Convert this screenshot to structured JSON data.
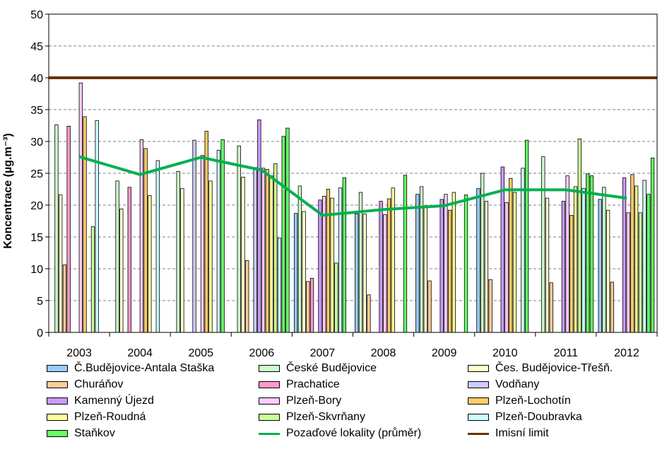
{
  "chart_data": {
    "type": "bar",
    "ylabel": "Koncentrace (µg.m⁻³)",
    "ylim": [
      0,
      50
    ],
    "yticks": [
      0,
      5,
      10,
      15,
      20,
      25,
      30,
      35,
      40,
      45,
      50
    ],
    "grid": true,
    "legend_position": "bottom",
    "categories": [
      "2003",
      "2004",
      "2005",
      "2006",
      "2007",
      "2008",
      "2009",
      "2010",
      "2011",
      "2012"
    ],
    "series": [
      {
        "name": "Č.Budějovice-Antala Staška",
        "color": "#99ccff",
        "values": [
          null,
          null,
          null,
          null,
          18.7,
          18.6,
          21.7,
          22.6,
          null,
          20.9
        ]
      },
      {
        "name": "České Budějovice",
        "color": "#ccffcc",
        "values": [
          32.6,
          23.8,
          25.3,
          29.3,
          23.0,
          22.0,
          22.9,
          25.0,
          27.6,
          22.8
        ]
      },
      {
        "name": "Čes. Budějovice-Třešň.",
        "color": "#ffffcc",
        "values": [
          21.6,
          19.4,
          22.6,
          24.4,
          19.0,
          18.6,
          19.9,
          20.6,
          21.1,
          19.2
        ]
      },
      {
        "name": "Churáňov",
        "color": "#ffcc99",
        "values": [
          10.6,
          null,
          null,
          11.3,
          8.0,
          5.9,
          8.1,
          8.3,
          7.8,
          7.9
        ]
      },
      {
        "name": "Prachatice",
        "color": "#ff99cc",
        "values": [
          32.4,
          22.8,
          null,
          null,
          8.5,
          null,
          null,
          null,
          null,
          null
        ]
      },
      {
        "name": "Vodňany",
        "color": "#ccccff",
        "values": [
          null,
          null,
          30.2,
          25.9,
          null,
          null,
          null,
          null,
          null,
          null
        ]
      },
      {
        "name": "Kamenný Újezd",
        "color": "#cc99ff",
        "values": [
          null,
          null,
          null,
          33.4,
          20.8,
          20.6,
          20.9,
          26.0,
          20.6,
          24.3
        ]
      },
      {
        "name": "Plzeň-Bory",
        "color": "#ffccff",
        "values": [
          39.2,
          30.3,
          27.8,
          25.8,
          21.4,
          18.5,
          21.7,
          20.4,
          24.6,
          18.8
        ]
      },
      {
        "name": "Plzeň-Lochotín",
        "color": "#ffcc66",
        "values": [
          33.9,
          28.9,
          31.6,
          25.6,
          22.5,
          21.0,
          19.2,
          24.2,
          18.4,
          24.8
        ]
      },
      {
        "name": "Plzeň-Roudná",
        "color": "#ffff99",
        "values": [
          null,
          21.5,
          23.8,
          24.6,
          21.1,
          22.7,
          22.0,
          22.0,
          22.9,
          23.0
        ]
      },
      {
        "name": "Plzeň-Skvrňany",
        "color": "#ccff99",
        "values": [
          16.6,
          null,
          null,
          26.5,
          10.9,
          null,
          null,
          null,
          30.4,
          18.8
        ]
      },
      {
        "name": "Plzeň-Doubravka",
        "color": "#ccffff",
        "values": [
          33.3,
          27.0,
          28.6,
          14.8,
          22.7,
          null,
          null,
          25.8,
          22.6,
          23.9
        ]
      },
      {
        "name": "Staňkov",
        "color": "#66ff66",
        "values": [
          null,
          null,
          30.3,
          30.8,
          24.3,
          24.7,
          21.6,
          30.2,
          24.9,
          21.7
        ]
      }
    ],
    "extra_bars": [
      {
        "series": "Staňkov",
        "category": "2006",
        "value": 32.1
      },
      {
        "series": "Staňkov",
        "category": "2011",
        "value": 24.6
      },
      {
        "series": "Staňkov",
        "category": "2012",
        "value": 27.4
      }
    ],
    "lines": [
      {
        "name": "Pozaďové lokality (průměr)",
        "color": "#00b050",
        "values": [
          27.6,
          24.8,
          27.5,
          25.5,
          18.4,
          19.3,
          19.9,
          22.4,
          22.4,
          21.1
        ]
      },
      {
        "name": "Imisní limit",
        "color": "#663300",
        "values": [
          40,
          40,
          40,
          40,
          40,
          40,
          40,
          40,
          40,
          40
        ]
      }
    ]
  },
  "legend": {
    "items": [
      {
        "label": "Č.Budějovice-Antala Staška",
        "kind": "bar",
        "color": "#99ccff"
      },
      {
        "label": "České Budějovice",
        "kind": "bar",
        "color": "#ccffcc"
      },
      {
        "label": "Čes. Budějovice-Třešň.",
        "kind": "bar",
        "color": "#ffffcc"
      },
      {
        "label": "Churáňov",
        "kind": "bar",
        "color": "#ffcc99"
      },
      {
        "label": "Prachatice",
        "kind": "bar",
        "color": "#ff99cc"
      },
      {
        "label": "Vodňany",
        "kind": "bar",
        "color": "#ccccff"
      },
      {
        "label": "Kamenný Újezd",
        "kind": "bar",
        "color": "#cc99ff"
      },
      {
        "label": "Plzeň-Bory",
        "kind": "bar",
        "color": "#ffccff"
      },
      {
        "label": "Plzeň-Lochotín",
        "kind": "bar",
        "color": "#ffcc66"
      },
      {
        "label": "Plzeň-Roudná",
        "kind": "bar",
        "color": "#ffff99"
      },
      {
        "label": "Plzeň-Skvrňany",
        "kind": "bar",
        "color": "#ccff99"
      },
      {
        "label": "Plzeň-Doubravka",
        "kind": "bar",
        "color": "#ccffff"
      },
      {
        "label": "Staňkov",
        "kind": "bar",
        "color": "#66ff66"
      },
      {
        "label": "Pozaďové lokality (průměr)",
        "kind": "line",
        "color": "#00b050"
      },
      {
        "label": "Imisní limit",
        "kind": "line",
        "color": "#663300"
      }
    ]
  }
}
